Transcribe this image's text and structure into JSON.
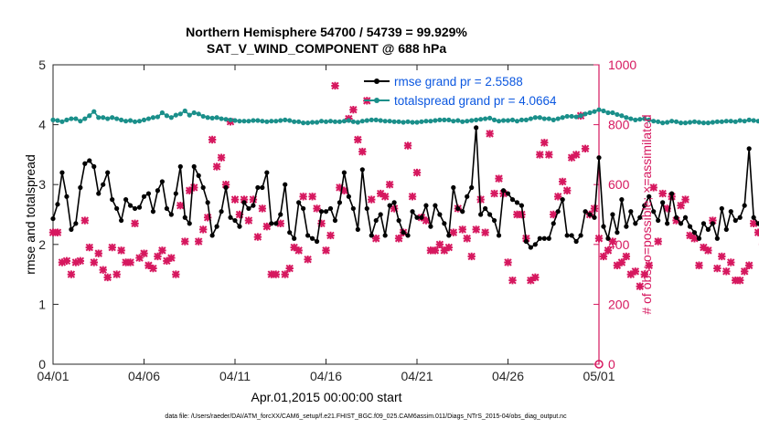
{
  "chart_data": {
    "type": "line",
    "title": "Northern Hemisphere 54700 / 54739 = 99.929%",
    "subtitle": "SAT_V_WIND_COMPONENT @ 688 hPa",
    "xlabel": "Apr.01,2015 00:00:00 start",
    "ylabel_left": "rmse and totalspread",
    "ylabel_right": "# of obs: o=possible; ×=assimilated",
    "footer": "data file: /Users/raeder/DAI/ATM_forcXX/CAM6_setup/f.e21.FHIST_BGC.f09_025.CAM6assim.011/Diags_NTrS_2015-04/obs_diag_output.nc",
    "xlim": [
      0,
      30
    ],
    "ylim_left": [
      0,
      5
    ],
    "ylim_right": [
      0,
      1000
    ],
    "x_ticks": [
      0,
      5,
      10,
      15,
      20,
      25,
      30
    ],
    "x_tick_labels": [
      "04/01",
      "04/06",
      "04/11",
      "04/16",
      "04/21",
      "04/26",
      "05/01"
    ],
    "y_left_ticks": [
      "0",
      "1",
      "2",
      "3",
      "4",
      "5"
    ],
    "y_right_ticks": [
      "0",
      "200",
      "400",
      "600",
      "800",
      "1000"
    ],
    "grid": false,
    "legend_position": "top-right",
    "colors": {
      "rmse": "#000000",
      "totalspread": "#1a8f8a",
      "obs": "#d6185f",
      "left_axis": "#262626",
      "right_axis": "#d6185f",
      "legend_text": "#0b57e0"
    },
    "series": [
      {
        "name": "rmse grand pr = 2.5588",
        "axis": "left",
        "marker": "circle",
        "x_start": 0,
        "x_step": 0.25,
        "values": [
          2.43,
          2.67,
          3.2,
          2.8,
          2.25,
          2.35,
          2.95,
          3.35,
          3.4,
          3.3,
          2.85,
          3.0,
          3.2,
          2.75,
          2.6,
          2.4,
          2.75,
          2.65,
          2.6,
          2.62,
          2.8,
          2.85,
          2.55,
          2.9,
          3.05,
          2.6,
          2.5,
          2.85,
          3.3,
          2.45,
          2.35,
          3.3,
          3.15,
          2.95,
          2.7,
          2.15,
          2.3,
          2.55,
          2.95,
          2.45,
          2.4,
          2.3,
          2.7,
          2.6,
          2.65,
          2.95,
          2.95,
          3.2,
          2.35,
          2.35,
          2.5,
          3.0,
          2.2,
          2.1,
          2.7,
          2.6,
          2.15,
          2.1,
          2.05,
          2.55,
          2.55,
          2.6,
          2.4,
          2.7,
          3.2,
          2.8,
          2.6,
          2.25,
          3.25,
          2.6,
          2.15,
          2.4,
          2.5,
          2.15,
          2.65,
          2.7,
          2.4,
          2.2,
          2.15,
          2.55,
          2.45,
          2.45,
          2.65,
          2.3,
          2.65,
          2.5,
          2.35,
          2.15,
          2.95,
          2.6,
          2.55,
          2.8,
          2.95,
          3.95,
          2.5,
          2.6,
          2.5,
          2.4,
          2.15,
          2.9,
          2.85,
          2.75,
          2.7,
          2.65,
          2.05,
          1.95,
          2.0,
          2.1,
          2.1,
          2.1,
          2.35,
          2.55,
          2.75,
          2.15,
          2.15,
          2.05,
          2.15,
          2.55,
          2.5,
          2.45,
          3.45,
          2.3,
          2.1,
          2.5,
          2.2,
          2.75,
          2.3,
          2.55,
          2.35,
          2.45,
          2.65,
          2.8,
          2.55,
          2.4,
          2.7,
          2.35,
          2.85,
          2.45,
          2.35,
          2.45,
          2.3,
          2.2,
          2.1,
          2.35,
          2.25,
          2.35,
          2.1,
          2.6,
          2.25,
          2.55,
          2.4,
          2.45,
          2.65,
          3.6,
          2.45,
          2.35,
          2.2,
          2.45,
          2.5,
          2.45,
          2.4,
          2.3,
          2.5,
          2.45,
          2.3,
          2.45,
          2.15,
          2.0,
          1.95,
          1.9
        ]
      },
      {
        "name": "totalspread grand pr = 4.0664",
        "axis": "left",
        "marker": "circle",
        "x_start": 0,
        "x_step": 0.25,
        "values": [
          4.08,
          4.07,
          4.05,
          4.08,
          4.1,
          4.1,
          4.06,
          4.1,
          4.15,
          4.22,
          4.12,
          4.12,
          4.1,
          4.12,
          4.1,
          4.08,
          4.06,
          4.07,
          4.05,
          4.06,
          4.08,
          4.1,
          4.12,
          4.13,
          4.2,
          4.15,
          4.12,
          4.16,
          4.18,
          4.23,
          4.16,
          4.2,
          4.18,
          4.14,
          4.12,
          4.11,
          4.12,
          4.1,
          4.09,
          4.08,
          4.07,
          4.06,
          4.06,
          4.06,
          4.07,
          4.07,
          4.06,
          4.05,
          4.06,
          4.06,
          4.07,
          4.08,
          4.07,
          4.05,
          4.05,
          4.03,
          4.03,
          4.04,
          4.04,
          4.06,
          4.05,
          4.06,
          4.05,
          4.05,
          4.06,
          4.07,
          4.05,
          4.04,
          4.06,
          4.07,
          4.08,
          4.08,
          4.07,
          4.06,
          4.06,
          4.05,
          4.05,
          4.04,
          4.05,
          4.04,
          4.04,
          4.05,
          4.06,
          4.06,
          4.07,
          4.08,
          4.08,
          4.08,
          4.06,
          4.07,
          4.05,
          4.06,
          4.07,
          4.08,
          4.09,
          4.1,
          4.11,
          4.08,
          4.06,
          4.07,
          4.07,
          4.08,
          4.06,
          4.08,
          4.08,
          4.1,
          4.12,
          4.12,
          4.1,
          4.1,
          4.08,
          4.1,
          4.12,
          4.14,
          4.14,
          4.13,
          4.15,
          4.18,
          4.2,
          4.22,
          4.25,
          4.23,
          4.2,
          4.2,
          4.17,
          4.15,
          4.12,
          4.1,
          4.08,
          4.09,
          4.1,
          4.08,
          4.06,
          4.05,
          4.03,
          4.04,
          4.06,
          4.05,
          4.03,
          4.03,
          4.04,
          4.05,
          4.04,
          4.03,
          4.03,
          4.04,
          4.05,
          4.05,
          4.06,
          4.06,
          4.05,
          4.07,
          4.06,
          4.08,
          4.07,
          4.06,
          4.05,
          4.05,
          4.05,
          4.06,
          4.05,
          4.04,
          4.04,
          4.05,
          4.05,
          4.03,
          4.03,
          4.04,
          4.04,
          4.05,
          4.04,
          4.03,
          4.02,
          4.01
        ]
      },
      {
        "name": "obs possible/assimilated",
        "axis": "right",
        "marker": "x",
        "x_start": 0,
        "x_step": 0.25,
        "values": [
          440,
          440,
          340,
          345,
          300,
          340,
          345,
          480,
          390,
          340,
          370,
          315,
          290,
          390,
          300,
          380,
          340,
          340,
          470,
          355,
          370,
          330,
          320,
          360,
          380,
          345,
          355,
          300,
          530,
          410,
          580,
          590,
          410,
          450,
          490,
          750,
          660,
          690,
          600,
          810,
          550,
          500,
          550,
          480,
          550,
          425,
          520,
          460,
          300,
          300,
          470,
          300,
          320,
          390,
          380,
          560,
          350,
          560,
          520,
          470,
          380,
          430,
          930,
          590,
          580,
          820,
          850,
          750,
          710,
          880,
          550,
          420,
          570,
          560,
          600,
          520,
          420,
          440,
          730,
          560,
          640,
          490,
          480,
          380,
          380,
          400,
          380,
          390,
          440,
          520,
          450,
          420,
          360,
          450,
          550,
          440,
          770,
          570,
          620,
          570,
          340,
          280,
          500,
          500,
          420,
          280,
          290,
          700,
          740,
          700,
          500,
          560,
          610,
          580,
          690,
          700,
          830,
          720,
          500,
          520,
          420,
          360,
          380,
          410,
          330,
          340,
          360,
          300,
          310,
          260,
          300,
          330,
          590,
          410,
          570,
          520,
          560,
          480,
          530,
          550,
          430,
          420,
          330,
          390,
          380,
          480,
          320,
          360,
          310,
          340,
          280,
          280,
          310,
          330,
          470,
          440,
          400,
          590,
          430,
          370,
          430,
          300,
          360,
          350,
          400,
          350,
          330,
          280,
          350,
          410,
          420,
          320,
          290,
          320,
          420,
          290,
          280,
          330
        ]
      }
    ]
  }
}
